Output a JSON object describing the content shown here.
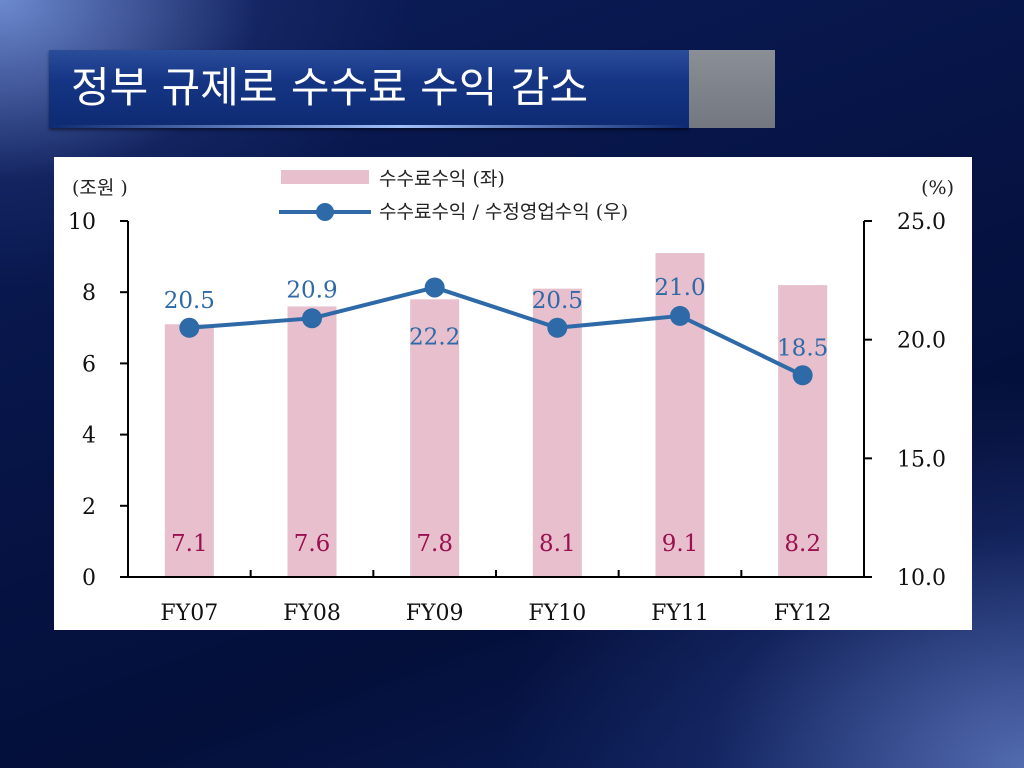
{
  "title": "정부 규제로 수수료 수익 감소",
  "chart_data": {
    "type": "bar",
    "categories": [
      "FY07",
      "FY08",
      "FY09",
      "FY10",
      "FY11",
      "FY12"
    ],
    "left_axis": {
      "unit_label": "(조원 )",
      "ylim": [
        0,
        10
      ],
      "ticks": [
        "0",
        "2",
        "4",
        "6",
        "8",
        "10"
      ]
    },
    "right_axis": {
      "unit_label": "(%)",
      "ylim": [
        10,
        25
      ],
      "ticks": [
        "10.0",
        "15.0",
        "20.0",
        "25.0"
      ]
    },
    "series": [
      {
        "name": "수수료수익 (좌)",
        "type": "bar",
        "axis": "left",
        "values": [
          7.1,
          7.6,
          7.8,
          8.1,
          9.1,
          8.2
        ],
        "labels": [
          "7.1",
          "7.6",
          "7.8",
          "8.1",
          "9.1",
          "8.2"
        ],
        "color": "#e8bfcc",
        "label_color": "#9b1050"
      },
      {
        "name": "수수료수익 / 수정영업수익 (우)",
        "type": "line",
        "axis": "right",
        "values": [
          20.5,
          20.9,
          22.2,
          20.5,
          21.0,
          18.5
        ],
        "labels": [
          "20.5",
          "20.9",
          "22.2",
          "20.5",
          "21.0",
          "18.5"
        ],
        "color": "#2e6aa8",
        "label_color": "#2e6aa8"
      }
    ],
    "legend": "top-center",
    "grid": false
  }
}
